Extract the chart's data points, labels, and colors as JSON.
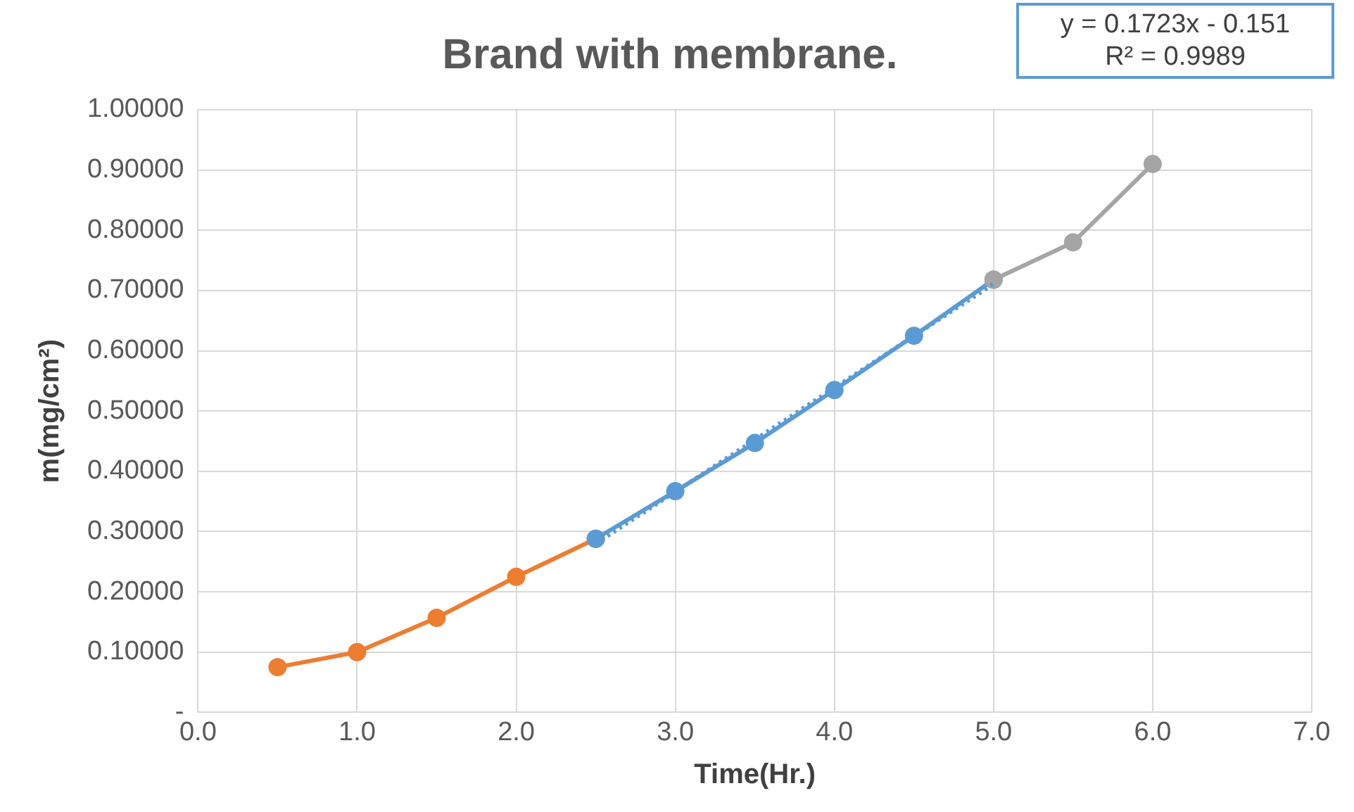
{
  "chart_data": {
    "type": "line",
    "title": "Brand with membrane.",
    "xlabel": "Time(Hr.)",
    "ylabel": "m(mg/cm²)",
    "xlim": [
      0,
      7
    ],
    "xticks": [
      {
        "value": 0,
        "label": "0.0"
      },
      {
        "value": 1,
        "label": "1.0"
      },
      {
        "value": 2,
        "label": "2.0"
      },
      {
        "value": 3,
        "label": "3.0"
      },
      {
        "value": 4,
        "label": "4.0"
      },
      {
        "value": 5,
        "label": "5.0"
      },
      {
        "value": 6,
        "label": "6.0"
      },
      {
        "value": 7,
        "label": "7.0"
      }
    ],
    "ylim": [
      0,
      1
    ],
    "yticks": [
      {
        "value": 0,
        "label": "-"
      },
      {
        "value": 0.1,
        "label": "0.10000"
      },
      {
        "value": 0.2,
        "label": "0.20000"
      },
      {
        "value": 0.3,
        "label": "0.30000"
      },
      {
        "value": 0.4,
        "label": "0.40000"
      },
      {
        "value": 0.5,
        "label": "0.50000"
      },
      {
        "value": 0.6,
        "label": "0.60000"
      },
      {
        "value": 0.7,
        "label": "0.70000"
      },
      {
        "value": 0.8,
        "label": "0.80000"
      },
      {
        "value": 0.9,
        "label": "0.90000"
      },
      {
        "value": 1,
        "label": "1.00000"
      }
    ],
    "grid": true,
    "legend": false,
    "marker": "circle",
    "line_style": "solid",
    "series": [
      {
        "color": "#ed7d31",
        "x": [
          0.5,
          1,
          1.5,
          2,
          2.5
        ],
        "values": [
          0.075,
          0.1,
          0.157,
          0.225,
          0.288
        ]
      },
      {
        "color": "#5b9bd5",
        "x": [
          2.5,
          3,
          3.5,
          4,
          4.5,
          5
        ],
        "values": [
          0.288,
          0.367,
          0.447,
          0.535,
          0.625,
          0.718
        ]
      },
      {
        "color": "#a5a5a5",
        "x": [
          5,
          5.5,
          6
        ],
        "values": [
          0.718,
          0.78,
          0.91
        ]
      },
      {
        "color": "#5b9bd5",
        "x": [
          2.5,
          5
        ],
        "values": [
          0.28,
          0.711
        ],
        "marker": "none",
        "line_style": "dotted"
      }
    ],
    "annotations": [
      "y = 0.1723x - 0.151",
      "R² = 0.9989"
    ]
  }
}
